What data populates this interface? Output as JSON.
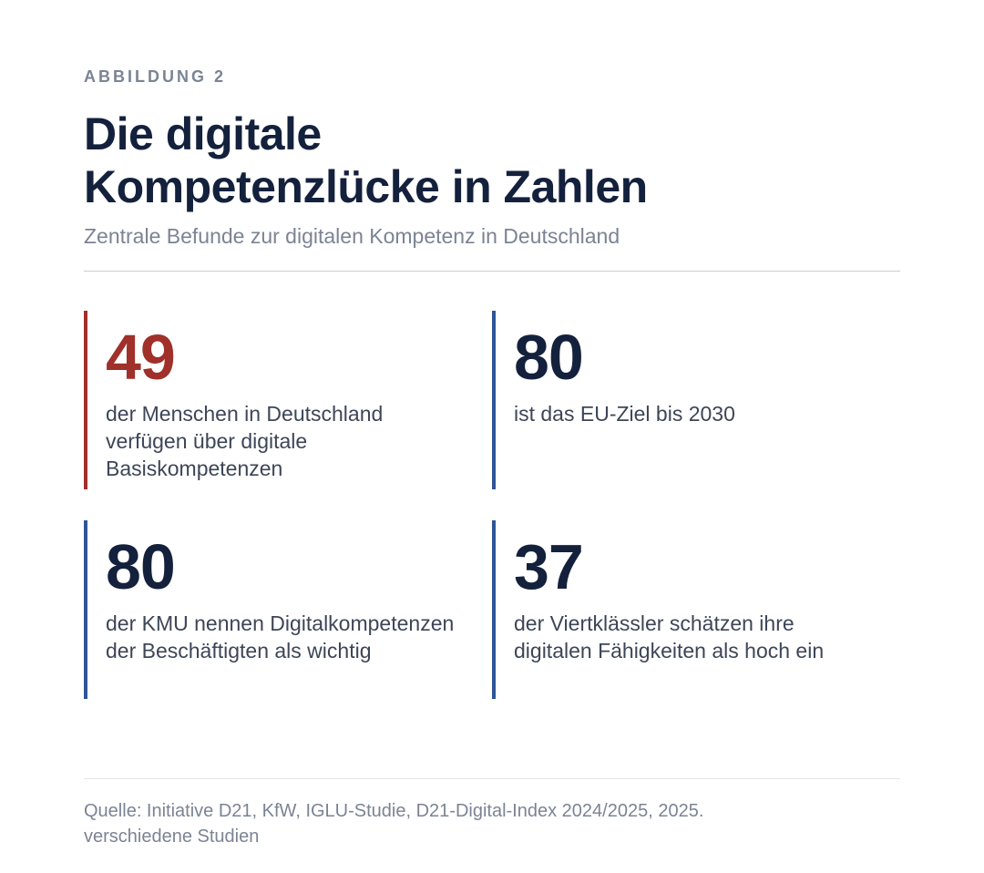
{
  "header": {
    "kicker": "ABBILDUNG 2",
    "title_line1": "Die digitale",
    "title_line2": "Kompetenzlücke in Zahlen",
    "subtitle": "Zentrale Befunde zur digitalen Kompetenz in Deutschland"
  },
  "chart_data": {
    "type": "table",
    "title": "Die digitale Kompetenzlücke in Zahlen",
    "subtitle": "Zentrale Befunde zur digitalen Kompetenz in Deutschland",
    "stats": [
      {
        "value": "49",
        "label": "der Menschen in Deutschland verfügen über digitale Basiskompetenzen",
        "color": "#a0302a"
      },
      {
        "value": "80",
        "label": "ist das EU-Ziel bis 2030",
        "color": "#14213d"
      },
      {
        "value": "80",
        "label": "der KMU nennen Digitalkompetenzen der Beschäftigten als wichtig",
        "color": "#14213d"
      },
      {
        "value": "37",
        "label": "der Viertklässler schätzen ihre digitalen Fähigkeiten als hoch ein",
        "color": "#14213d"
      }
    ]
  },
  "footer": {
    "source_line1": "Quelle: Initiative D21, KfW, IGLU-Studie, D21-Digital-Index 2024/2025, 2025.",
    "source_line2": "verschiedene Studien"
  },
  "colors": {
    "accent_red": "#a0302a",
    "accent_blue": "#2e5597",
    "title_navy": "#14213d",
    "muted_gray": "#7b8494"
  }
}
